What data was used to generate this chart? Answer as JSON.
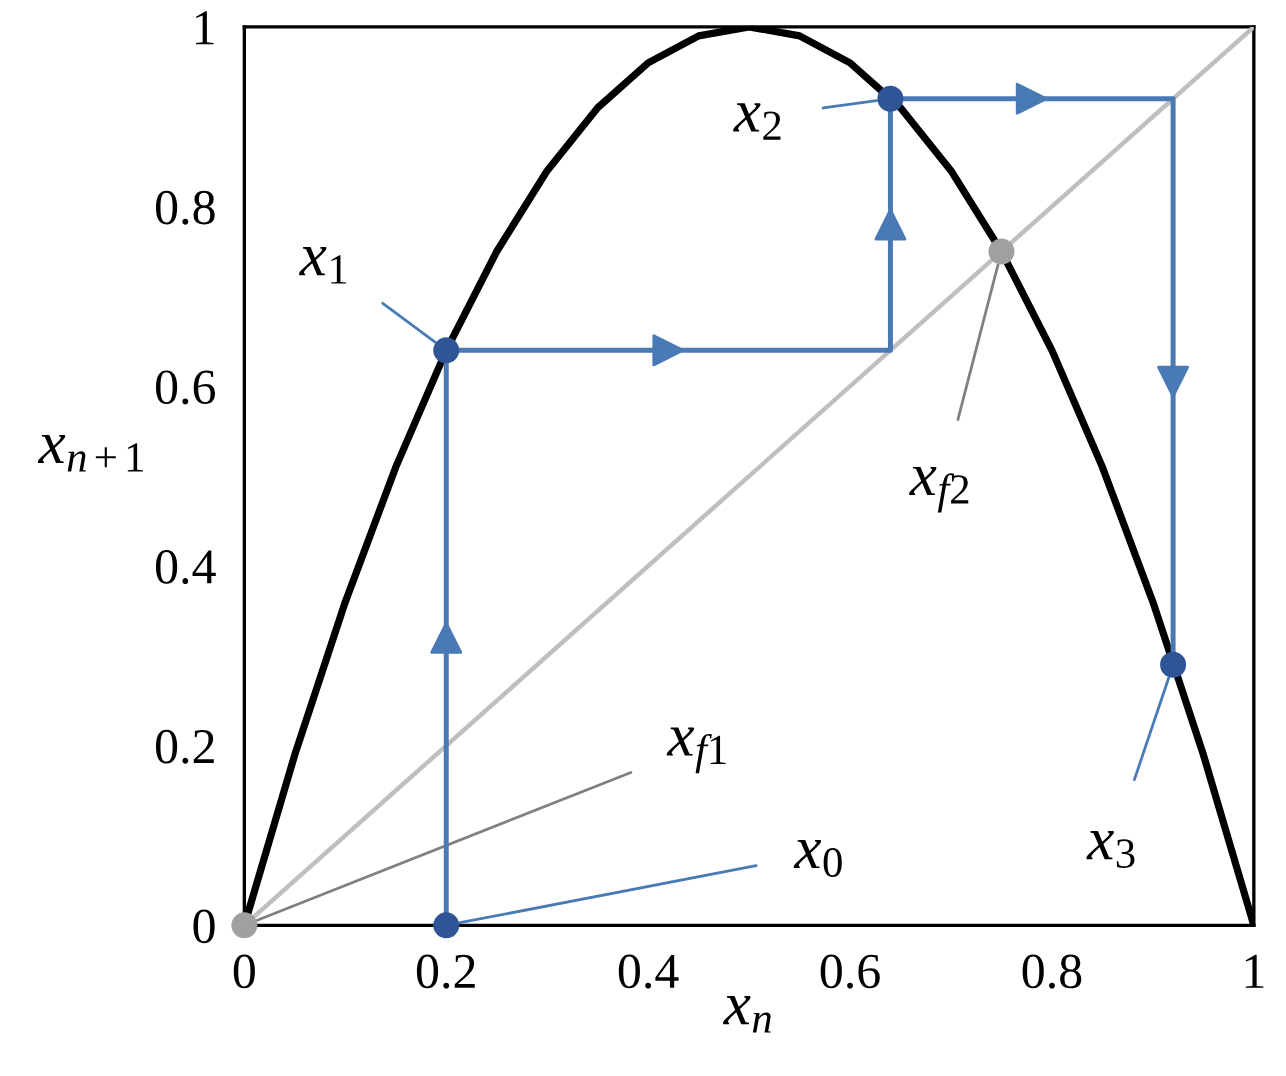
{
  "chart_data": {
    "type": "line",
    "xlabel": "x$_{n}$",
    "ylabel": "x$_{n+1}$",
    "xlim": [
      0,
      1
    ],
    "ylim": [
      0,
      1
    ],
    "xticks": [
      0,
      0.2,
      0.4,
      0.6,
      0.8,
      1
    ],
    "yticks": [
      0,
      0.2,
      0.4,
      0.6,
      0.8,
      1
    ],
    "grid": false,
    "legend": false,
    "series": [
      {
        "color": "#000000",
        "marker": "none",
        "x": [
          0,
          0.05,
          0.1,
          0.15,
          0.2,
          0.25,
          0.3,
          0.35,
          0.4,
          0.45,
          0.5,
          0.55,
          0.6,
          0.65,
          0.7,
          0.75,
          0.8,
          0.85,
          0.9,
          0.95,
          1
        ],
        "values": [
          0,
          0.19,
          0.36,
          0.51,
          0.64,
          0.75,
          0.84,
          0.91,
          0.96,
          0.99,
          1,
          0.99,
          0.96,
          0.91,
          0.84,
          0.75,
          0.64,
          0.51,
          0.36,
          0.19,
          0
        ]
      },
      {
        "color": "#bfbfbf",
        "marker": "none",
        "x": [
          0,
          1
        ],
        "values": [
          0,
          1
        ]
      },
      {
        "color": "#4a7ab5",
        "marker": "none",
        "x": [
          0.2,
          0.2,
          0.64,
          0.64,
          0.92,
          0.92
        ],
        "values": [
          0,
          0.64,
          0.64,
          0.92,
          0.92,
          0.29
        ]
      },
      {
        "type": "scatter",
        "color": "#2f5597",
        "marker": "circle",
        "x": [
          0.2,
          0.2,
          0.64,
          0.92
        ],
        "values": [
          0,
          0.64,
          0.92,
          0.29
        ]
      },
      {
        "type": "scatter",
        "color": "#a0a0a0",
        "marker": "circle",
        "x": [
          0,
          0.75
        ],
        "values": [
          0,
          0.75
        ]
      }
    ],
    "annotations": [
      {
        "text": "x$_{1}$",
        "x": 0.2,
        "y": 0.64
      },
      {
        "text": "x$_{2}$",
        "x": 0.64,
        "y": 0.92
      },
      {
        "text": "x$_{f2}$",
        "x": 0.75,
        "y": 0.75
      },
      {
        "text": "x$_{f1}$",
        "x": 0,
        "y": 0
      },
      {
        "text": "x$_{0}$",
        "x": 0.2,
        "y": 0
      },
      {
        "text": "x$_{3}$",
        "x": 0.92,
        "y": 0.29
      }
    ]
  }
}
